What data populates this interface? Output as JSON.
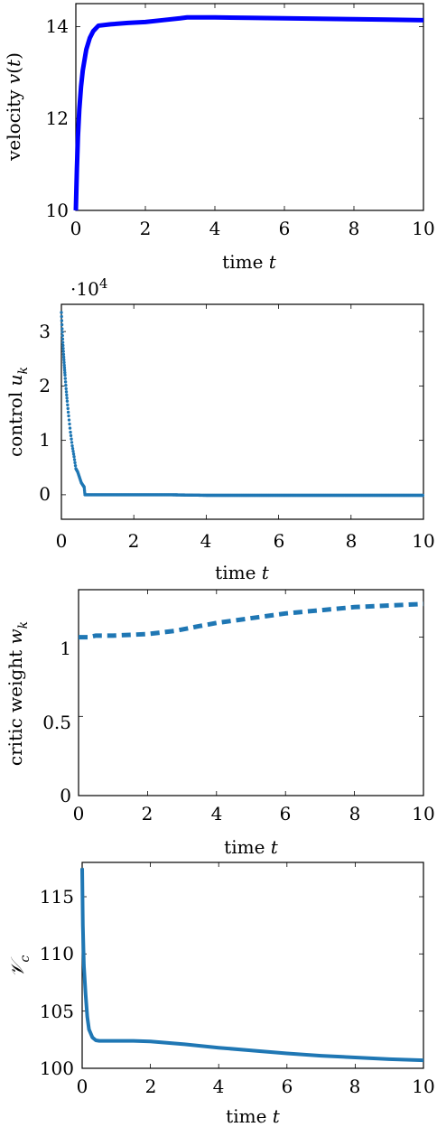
{
  "chart_data": [
    {
      "type": "line",
      "xlabel": "time t",
      "ylabel": "velocity v(t)",
      "xlim": [
        0,
        10
      ],
      "ylim": [
        10,
        14.5
      ],
      "xticks": [
        "0",
        "2",
        "4",
        "6",
        "8",
        "10"
      ],
      "yticks": [
        "10",
        "12",
        "14"
      ],
      "color": "#0000ff",
      "series": [
        {
          "x": [
            0,
            0.03,
            0.06,
            0.1,
            0.15,
            0.2,
            0.3,
            0.4,
            0.5,
            0.6,
            0.65,
            1,
            1.5,
            2,
            2.5,
            3,
            3.2,
            4,
            5,
            6,
            7,
            8,
            9,
            10
          ],
          "values": [
            10.0,
            10.9,
            11.6,
            12.2,
            12.7,
            13.05,
            13.5,
            13.75,
            13.9,
            13.98,
            14.02,
            14.05,
            14.08,
            14.1,
            14.14,
            14.18,
            14.2,
            14.2,
            14.19,
            14.18,
            14.17,
            14.16,
            14.15,
            14.14
          ]
        }
      ]
    },
    {
      "type": "scatter",
      "xlabel": "time t",
      "ylabel": "control u_k",
      "scale_label": "·10^4",
      "xlim": [
        0,
        10
      ],
      "ylim": [
        -0.45,
        3.5
      ],
      "xticks": [
        "0",
        "2",
        "4",
        "6",
        "8",
        "10"
      ],
      "yticks": [
        "0",
        "1",
        "2",
        "3"
      ],
      "color": "#1f77b4",
      "series": [
        {
          "x": [
            0,
            0.02,
            0.04,
            0.06,
            0.08,
            0.1,
            0.13,
            0.16,
            0.2,
            0.25,
            0.3,
            0.35,
            0.4,
            0.45,
            0.5,
            0.55,
            0.6,
            0.63,
            0.65,
            1,
            2,
            3,
            4,
            5,
            6,
            7,
            8,
            9,
            10
          ],
          "values": [
            3.35,
            3.05,
            2.8,
            2.58,
            2.38,
            2.2,
            1.95,
            1.72,
            1.45,
            1.15,
            0.9,
            0.7,
            0.48,
            0.42,
            0.32,
            0.22,
            0.17,
            0.14,
            0.0,
            0.0,
            0.0,
            0.0,
            -0.01,
            -0.01,
            -0.01,
            -0.01,
            -0.01,
            -0.01,
            -0.01
          ]
        }
      ]
    },
    {
      "type": "line",
      "xlabel": "time t",
      "ylabel": "critic weight w_k",
      "xlim": [
        0,
        10
      ],
      "ylim": [
        0,
        1.3
      ],
      "xticks": [
        "0",
        "2",
        "4",
        "6",
        "8",
        "10"
      ],
      "yticks": [
        "0",
        "0.5",
        "1"
      ],
      "color": "#1f77b4",
      "line_style": "dashed",
      "series": [
        {
          "x": [
            0,
            0.3,
            0.5,
            1,
            2,
            2.8,
            3.5,
            4,
            5,
            6,
            7,
            8,
            9,
            10
          ],
          "values": [
            1.0,
            1.0,
            1.01,
            1.01,
            1.02,
            1.04,
            1.07,
            1.09,
            1.12,
            1.15,
            1.17,
            1.19,
            1.2,
            1.21
          ]
        }
      ]
    },
    {
      "type": "line",
      "xlabel": "time t",
      "ylabel": "V_c",
      "xlim": [
        0,
        10
      ],
      "ylim": [
        100,
        118
      ],
      "xticks": [
        "0",
        "2",
        "4",
        "6",
        "8",
        "10"
      ],
      "yticks": [
        "100",
        "105",
        "110",
        "115"
      ],
      "color": "#1f77b4",
      "series": [
        {
          "x": [
            0,
            0.02,
            0.05,
            0.1,
            0.15,
            0.2,
            0.3,
            0.4,
            0.5,
            0.7,
            1,
            1.5,
            2,
            3,
            4,
            5,
            6,
            7,
            8,
            9,
            10
          ],
          "values": [
            117.5,
            112.5,
            109.0,
            106.5,
            104.5,
            103.4,
            102.7,
            102.45,
            102.4,
            102.4,
            102.4,
            102.4,
            102.35,
            102.1,
            101.8,
            101.55,
            101.3,
            101.1,
            100.95,
            100.8,
            100.7
          ]
        }
      ]
    }
  ]
}
